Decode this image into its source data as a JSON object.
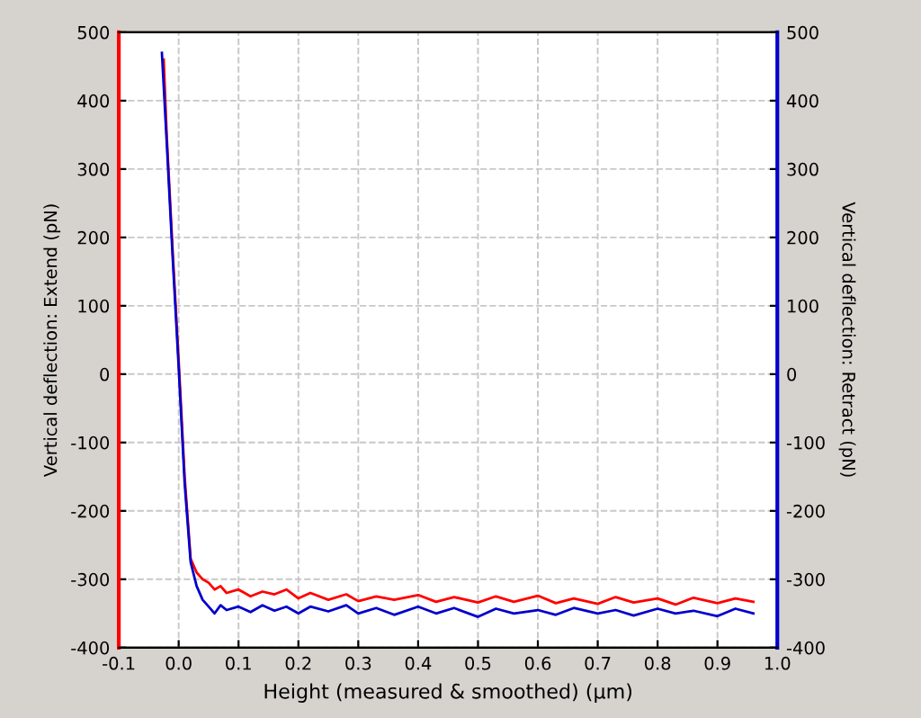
{
  "chart_data": {
    "type": "line",
    "xlabel": "Height (measured & smoothed) (µm)",
    "ylabel": "Vertical deflection: Extend (pN)",
    "y2label": "Vertical deflection: Retract (pN)",
    "xlim": [
      -0.1,
      1.0
    ],
    "xticks": [
      -0.1,
      {
        "value": 0,
        "label": "0.0"
      },
      0.1,
      0.2,
      0.3,
      0.4,
      0.5,
      0.6,
      0.7,
      0.8,
      0.9,
      {
        "value": 1.0,
        "label": "1.0"
      }
    ],
    "ylim": [
      -400,
      500
    ],
    "yticks": [
      -400,
      -300,
      -200,
      -100,
      0,
      100,
      200,
      300,
      400,
      500
    ],
    "y2lim": [
      -400,
      500
    ],
    "y2ticks": [
      -400,
      -300,
      -200,
      -100,
      0,
      100,
      200,
      300,
      400,
      500
    ],
    "grid": true,
    "legend": false,
    "marker": "none",
    "line_style": "solid",
    "series": [
      {
        "color": "#ff0000",
        "axis": "y",
        "x": [
          -0.025,
          -0.02,
          -0.01,
          0,
          0.01,
          0.02,
          0.025,
          0.03,
          0.04,
          0.05,
          0.06,
          0.07,
          0.08,
          0.1,
          0.12,
          0.14,
          0.16,
          0.18,
          0.2,
          0.22,
          0.25,
          0.28,
          0.3,
          0.33,
          0.36,
          0.4,
          0.43,
          0.46,
          0.5,
          0.53,
          0.56,
          0.6,
          0.63,
          0.66,
          0.7,
          0.73,
          0.76,
          0.8,
          0.83,
          0.86,
          0.9,
          0.93,
          0.96
        ],
        "values": [
          460,
          350,
          180,
          20,
          -150,
          -270,
          -280,
          -290,
          -300,
          -305,
          -315,
          -310,
          -320,
          -315,
          -325,
          -318,
          -322,
          -315,
          -328,
          -320,
          -330,
          -322,
          -332,
          -325,
          -330,
          -323,
          -333,
          -326,
          -334,
          -325,
          -333,
          -324,
          -335,
          -328,
          -336,
          -326,
          -334,
          -328,
          -337,
          -327,
          -335,
          -328,
          -333
        ]
      },
      {
        "color": "#0000cc",
        "axis": "y2",
        "x": [
          -0.028,
          -0.02,
          -0.01,
          0,
          0.01,
          0.02,
          0.03,
          0.04,
          0.05,
          0.06,
          0.07,
          0.08,
          0.1,
          0.12,
          0.14,
          0.16,
          0.18,
          0.2,
          0.22,
          0.25,
          0.28,
          0.3,
          0.33,
          0.36,
          0.4,
          0.43,
          0.46,
          0.5,
          0.53,
          0.56,
          0.6,
          0.63,
          0.66,
          0.7,
          0.73,
          0.76,
          0.8,
          0.83,
          0.86,
          0.9,
          0.93,
          0.96
        ],
        "values": [
          470,
          340,
          170,
          10,
          -160,
          -275,
          -310,
          -330,
          -340,
          -350,
          -338,
          -345,
          -340,
          -348,
          -338,
          -346,
          -340,
          -350,
          -340,
          -347,
          -338,
          -350,
          -342,
          -352,
          -340,
          -350,
          -342,
          -355,
          -343,
          -350,
          -345,
          -352,
          -342,
          -350,
          -345,
          -353,
          -343,
          -350,
          -346,
          -354,
          -343,
          -350
        ]
      }
    ]
  }
}
